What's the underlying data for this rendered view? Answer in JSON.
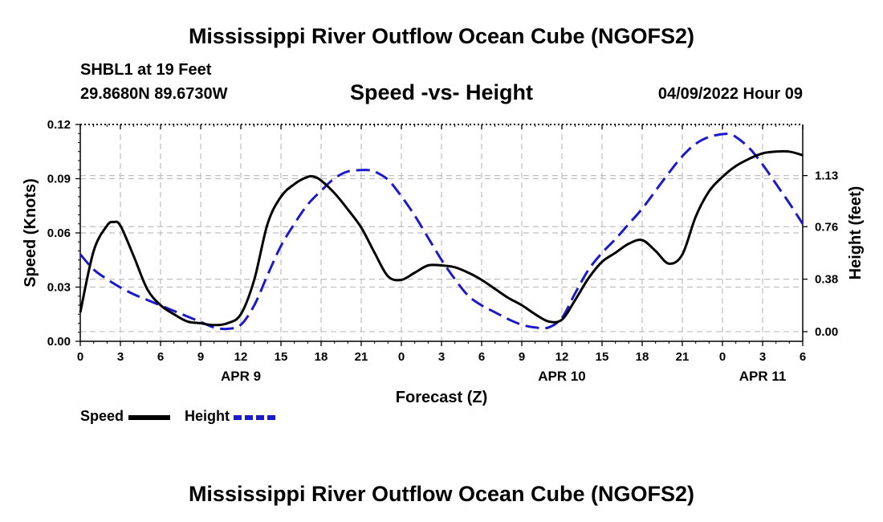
{
  "title": "Mississippi River Outflow Ocean Cube (NGOFS2)",
  "bottom_title": "Mississippi River Outflow Ocean Cube (NGOFS2)",
  "station": "SHBL1 at 19 Feet",
  "coords": "29.8680N  89.6730W",
  "subtitle": "Speed -vs- Height",
  "datetime": "04/09/2022 Hour 09",
  "colors": {
    "speed": "#000000",
    "height": "#1a1acc",
    "grid": "#bfbfbf"
  },
  "chart_data": {
    "type": "line",
    "xlabel": "Forecast (Z)",
    "ylabel": "Speed (Knots)",
    "y2label": "Height (feet)",
    "xlim": [
      0,
      54
    ],
    "ylim": [
      0,
      0.12
    ],
    "y2lim": [
      -0.07,
      1.5
    ],
    "x_ticks": [
      0,
      3,
      6,
      9,
      12,
      15,
      18,
      21,
      24,
      27,
      30,
      33,
      36,
      39,
      42,
      45,
      48,
      51,
      54
    ],
    "x_tick_labels": [
      "0",
      "3",
      "6",
      "9",
      "12",
      "15",
      "18",
      "21",
      "0",
      "3",
      "6",
      "9",
      "12",
      "15",
      "18",
      "21",
      "0",
      "3",
      "6"
    ],
    "date_labels": [
      {
        "x": 12,
        "label": "APR 9"
      },
      {
        "x": 36,
        "label": "APR 10"
      },
      {
        "x": 51,
        "label": "APR 11"
      }
    ],
    "y_ticks": [
      0.0,
      0.03,
      0.06,
      0.09,
      0.12
    ],
    "y_tick_labels": [
      "0.00",
      "0.03",
      "0.06",
      "0.09",
      "0.12"
    ],
    "y2_ticks": [
      0.0,
      0.38,
      0.76,
      1.13
    ],
    "y2_tick_labels": [
      "0.00",
      "0.38",
      "0.76",
      "1.13"
    ],
    "legend": [
      {
        "name": "Speed",
        "style": "solid"
      },
      {
        "name": "Height",
        "style": "dashed"
      }
    ],
    "series": [
      {
        "name": "Speed",
        "axis": "left",
        "x": [
          0,
          1,
          2,
          2.5,
          3,
          4,
          5,
          6,
          7,
          8,
          9,
          10,
          11,
          12,
          13,
          14,
          15,
          16,
          17,
          17.5,
          18,
          19,
          20,
          21,
          22,
          23,
          24,
          25,
          26,
          27,
          28,
          29,
          30,
          31,
          32,
          33,
          34,
          35,
          36,
          37,
          38,
          39,
          40,
          41,
          42,
          43,
          44,
          45,
          46,
          47,
          48,
          49,
          50,
          51,
          52,
          53,
          54
        ],
        "values": [
          0.016,
          0.05,
          0.064,
          0.066,
          0.064,
          0.047,
          0.029,
          0.02,
          0.015,
          0.011,
          0.01,
          0.009,
          0.01,
          0.015,
          0.034,
          0.065,
          0.08,
          0.087,
          0.091,
          0.091,
          0.089,
          0.082,
          0.073,
          0.063,
          0.049,
          0.036,
          0.034,
          0.038,
          0.042,
          0.042,
          0.041,
          0.038,
          0.034,
          0.029,
          0.024,
          0.02,
          0.015,
          0.011,
          0.012,
          0.023,
          0.035,
          0.044,
          0.049,
          0.054,
          0.056,
          0.05,
          0.043,
          0.048,
          0.069,
          0.083,
          0.091,
          0.097,
          0.101,
          0.104,
          0.105,
          0.105,
          0.103
        ]
      },
      {
        "name": "Height",
        "axis": "right",
        "x": [
          0,
          1,
          2,
          3,
          4,
          5,
          6,
          7,
          8,
          9,
          10,
          11,
          12,
          13,
          14,
          15,
          16,
          17,
          18,
          19,
          20,
          21,
          21.5,
          22,
          23,
          24,
          25,
          26,
          27,
          28,
          29,
          30,
          31,
          32,
          33,
          34,
          35,
          36,
          37,
          38,
          39,
          40,
          41,
          42,
          43,
          44,
          45,
          46,
          47,
          48,
          48.5,
          49,
          50,
          51,
          52,
          53,
          54
        ],
        "values": [
          0.56,
          0.45,
          0.38,
          0.32,
          0.27,
          0.23,
          0.19,
          0.15,
          0.11,
          0.07,
          0.03,
          0.02,
          0.05,
          0.19,
          0.41,
          0.62,
          0.78,
          0.92,
          1.02,
          1.11,
          1.16,
          1.17,
          1.17,
          1.16,
          1.1,
          0.98,
          0.84,
          0.68,
          0.52,
          0.38,
          0.26,
          0.19,
          0.14,
          0.09,
          0.05,
          0.03,
          0.03,
          0.1,
          0.28,
          0.45,
          0.57,
          0.67,
          0.78,
          0.89,
          1.02,
          1.15,
          1.27,
          1.36,
          1.41,
          1.43,
          1.43,
          1.41,
          1.33,
          1.21,
          1.07,
          0.93,
          0.78
        ]
      }
    ]
  }
}
